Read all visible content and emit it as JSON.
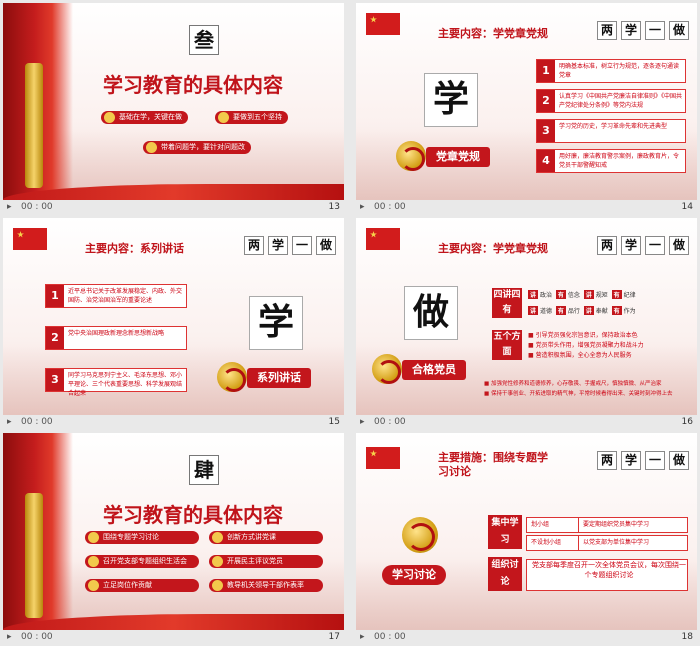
{
  "playback": {
    "play_icon": "play-icon",
    "time": "00 : 00"
  },
  "slides": [
    {
      "num": "13",
      "section_char": "叁",
      "title": "学习教育的具体内容",
      "pills": [
        "基础在学，关键在做",
        "要做到五个坚持",
        "带着问题学，要针对问题改"
      ]
    },
    {
      "num": "14",
      "main_title": "主要内容：学党章党规",
      "tags": [
        "两",
        "学",
        "一",
        "做"
      ],
      "big_char": "学",
      "ribbon": "党章党规",
      "items": [
        {
          "n": "1",
          "t": "明确基本标准，树立行为规范，逐条逐句通读党章"
        },
        {
          "n": "2",
          "t": "认真学习《中国共产党廉洁自律准则》《中国共产党纪律处分条例》等党内法规"
        },
        {
          "n": "3",
          "t": "学习党的历史，学习革命先辈和先进典型"
        },
        {
          "n": "4",
          "t": "用好廉，廉洁教育警示案例，廉政教育片，令党员干部警醒知戒"
        }
      ]
    },
    {
      "num": "15",
      "main_title": "主要内容：系列讲话",
      "tags": [
        "两",
        "学",
        "一",
        "做"
      ],
      "big_char": "学",
      "ribbon": "系列讲话",
      "items": [
        {
          "n": "1",
          "t": "近平总书记关于改革发展稳定、内政、外交国防、治党治国治军的重要论述"
        },
        {
          "n": "2",
          "t": "党中央治国理政新理念新思想新战略"
        },
        {
          "n": "3",
          "t": "同学习马克思列宁主义、毛泽东思想、邓小平理论、三个代表重要思想、科学发展观结合起来"
        }
      ]
    },
    {
      "num": "16",
      "main_title": "主要内容：学党章党规",
      "tags": [
        "两",
        "学",
        "一",
        "做"
      ],
      "big_char": "做",
      "ribbon": "合格党员",
      "box1": "四讲四有",
      "pairs_row1": [
        {
          "k": "讲",
          "v": "政治"
        },
        {
          "k": "有",
          "v": "信念"
        },
        {
          "k": "讲",
          "v": "规矩"
        },
        {
          "k": "有",
          "v": "纪律"
        }
      ],
      "pairs_row2": [
        {
          "k": "讲",
          "v": "道德"
        },
        {
          "k": "有",
          "v": "品行"
        },
        {
          "k": "讲",
          "v": "奉献"
        },
        {
          "k": "有",
          "v": "作为"
        }
      ],
      "box2": "五个方面",
      "lines": [
        "引导党员强化宗旨意识，保持政治本色",
        "党员带头作用，增强党员凝聚力和战斗力",
        "营造积极氛围，全心全意为人民服务"
      ],
      "bullets": [
        "加强党性修养和道德修养，心存敬畏、手握戒尺，慎独慎微、从严治家",
        "保持干事创业、开拓进取的精气神，平常时候看得出来、关键时刻冲得上去"
      ]
    },
    {
      "num": "17",
      "section_char": "肆",
      "title": "学习教育的具体内容",
      "pills": [
        "围绕专题学习讨论",
        "创新方式讲党课",
        "召开党支部专题组织生活会",
        "开展民主评议党员",
        "立足岗位作贡献",
        "教导机关领导干部作表率"
      ]
    },
    {
      "num": "18",
      "main_title": "主要措施：围绕专题学习讨论",
      "tags": [
        "两",
        "学",
        "一",
        "做"
      ],
      "ribbon": "学习讨论",
      "box1": "集中学习",
      "box2": "组织讨论",
      "rows": [
        {
          "a": "划小组",
          "b": "要定期组织党员集中学习"
        },
        {
          "a": "不设划小组",
          "b": "以党支部为单位集中学习"
        }
      ],
      "discussion": "党支部每季度召开一次全体党员会议，每次围绕一个专题组织讨论"
    }
  ]
}
